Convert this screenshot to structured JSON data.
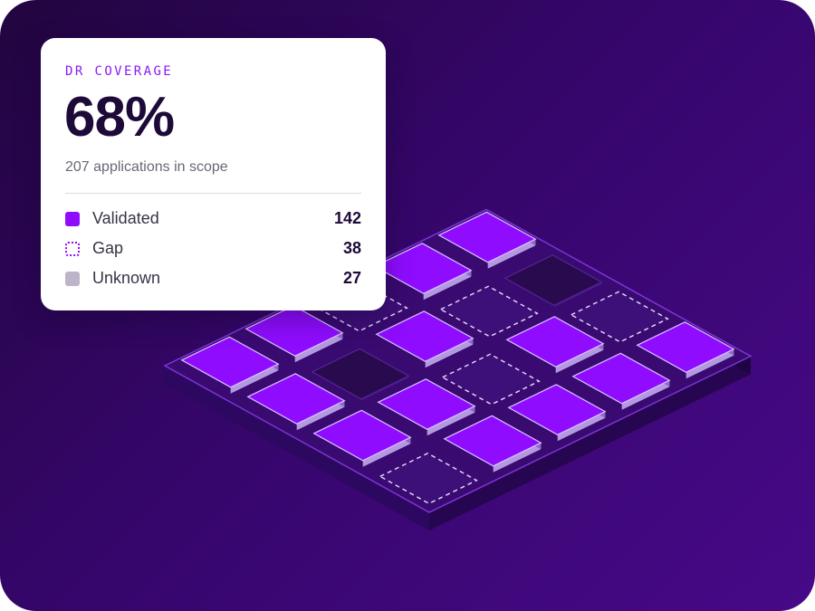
{
  "card": {
    "title": "DR COVERAGE",
    "value": "68%",
    "subtitle": "207 applications in scope",
    "legend": [
      {
        "label": "Validated",
        "count": "142",
        "color": "#8f0cff"
      },
      {
        "label": "Gap",
        "count": "38",
        "color": "#8f0cff"
      },
      {
        "label": "Unknown",
        "count": "27",
        "color": "#bdb4c9"
      }
    ]
  },
  "grid": {
    "colors": {
      "validated": "#8f0cff",
      "gap_border": "#e7d9ff",
      "unknown": "#2a0a4e",
      "platform_top": "#390a70",
      "platform_side": "#260650",
      "platform_edge": "#7c34d6"
    },
    "tiles": [
      [
        "validated",
        "validated",
        "gap",
        "validated",
        "validated"
      ],
      [
        "validated",
        "unknown",
        "validated",
        "gap",
        "unknown"
      ],
      [
        "validated",
        "validated",
        "gap",
        "validated",
        "gap"
      ],
      [
        "gap",
        "validated",
        "validated",
        "validated",
        "validated"
      ]
    ]
  }
}
